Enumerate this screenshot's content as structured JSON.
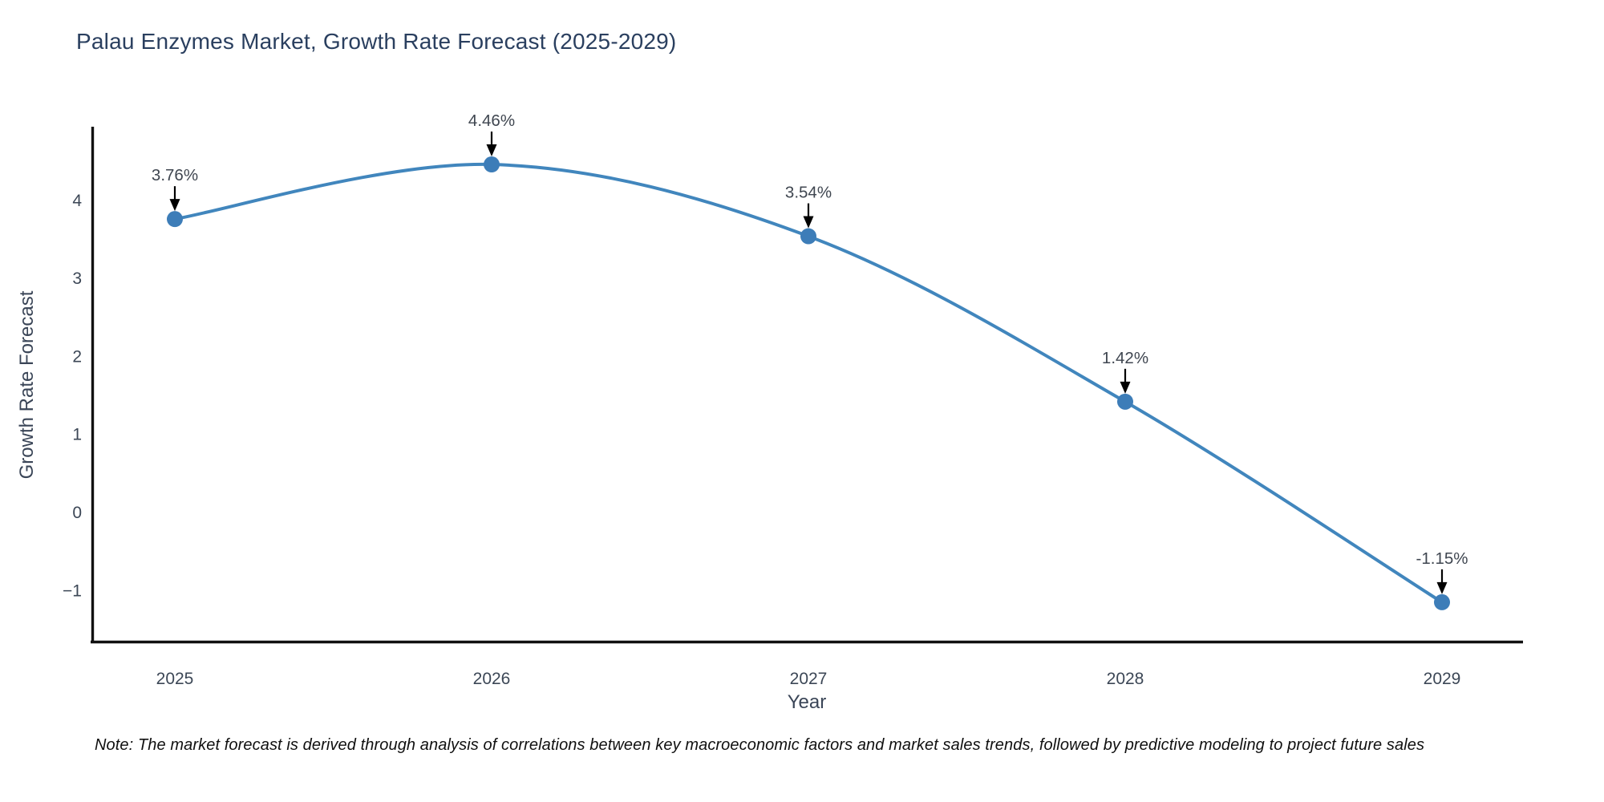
{
  "note": {
    "text": "Note: The market forecast is derived through analysis of correlations between key macroeconomic factors and market sales trends, followed by predictive modeling to project future sales"
  },
  "chart_data": {
    "type": "line",
    "title": "Palau Enzymes Market, Growth Rate Forecast (2025-2029)",
    "xlabel": "Year",
    "ylabel": "Growth Rate Forecast",
    "categories": [
      "2025",
      "2026",
      "2027",
      "2028",
      "2029"
    ],
    "values": [
      3.76,
      4.46,
      3.54,
      1.42,
      -1.15
    ],
    "point_labels": [
      "3.76%",
      "4.46%",
      "3.54%",
      "1.42%",
      "-1.15%"
    ],
    "ytick_values": [
      4,
      3,
      2,
      1,
      0,
      -1
    ],
    "ytick_labels": [
      "4",
      "3",
      "2",
      "1",
      "0",
      "−1"
    ],
    "ylim": [
      -1.66,
      4.93
    ],
    "line_shape": "spline",
    "grid": false,
    "legend_position": "none",
    "colors": {
      "line": "#4186bd",
      "marker": "#3d7db8",
      "axis": "#111111",
      "title_text": "#2a3f5f",
      "tick_text": "#3c4756",
      "annotation_text": "#3f4650",
      "arrow": "#000000",
      "background": "#ffffff"
    }
  }
}
